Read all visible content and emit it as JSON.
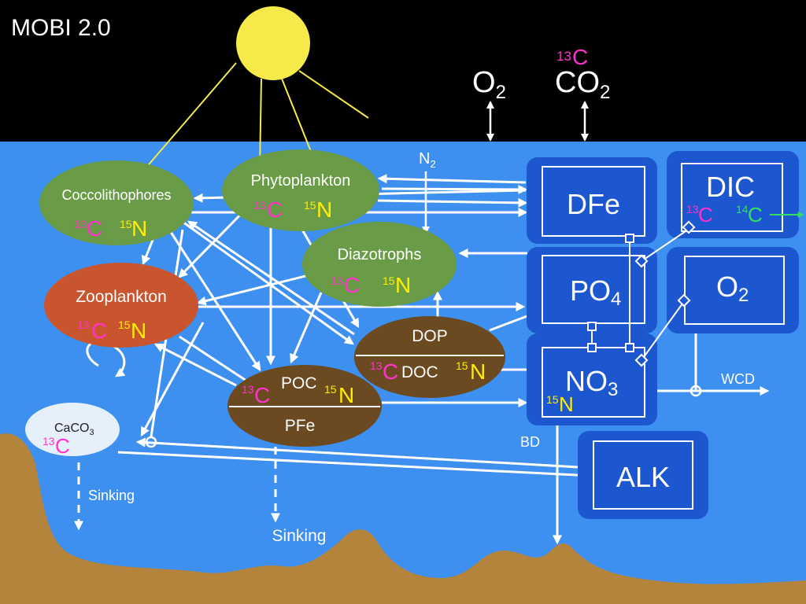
{
  "slide_title": "MOBI 2.0",
  "colors": {
    "sky": "#000000",
    "ocean": "#3d8ff0",
    "sun": "#f5ea4a",
    "seafloor": "#b5843c",
    "green_node": "#6a9c47",
    "orange_node": "#c9552f",
    "brown_node": "#6b4a22",
    "box_fill": "#1d57d0",
    "box_border": "#ffffff",
    "isotope_13C": "#ff33cc",
    "isotope_15N": "#ffee00",
    "isotope_14C": "#33dd66"
  },
  "labels": {
    "iso_13": "13",
    "iso_15": "15",
    "iso_14": "14",
    "C": "C",
    "N": "N",
    "gas_o2": "O",
    "gas_co2": "CO",
    "sub_2": "2",
    "sub_3": "3",
    "sub_4": "4"
  },
  "nodes": {
    "coccolithophores": "Coccolithophores",
    "phytoplankton": "Phytoplankton",
    "diazotrophs": "Diazotrophs",
    "zooplankton": "Zooplankton",
    "dop": "DOP",
    "doc": "DOC",
    "poc": "POC",
    "pfe": "PFe",
    "caco3": "CaCO",
    "dfe": "DFe",
    "dic": "DIC",
    "po4": "PO",
    "o2_box": "O",
    "no3": "NO",
    "alk": "ALK"
  },
  "annotations": {
    "n2": "N",
    "wcd": "WCD",
    "bd": "BD",
    "sinking_left": "Sinking",
    "sinking_mid": "Sinking"
  }
}
